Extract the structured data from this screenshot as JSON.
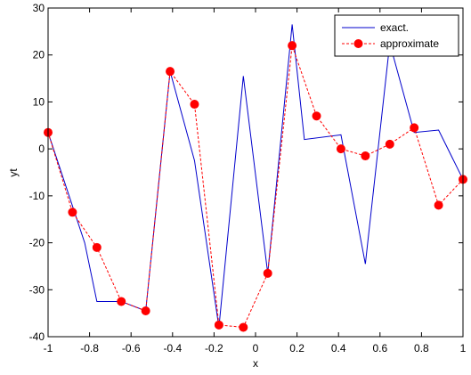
{
  "chart_data": {
    "type": "line",
    "xlabel": "x",
    "ylabel": "yt",
    "xlim": [
      -1,
      1
    ],
    "ylim": [
      -40,
      30
    ],
    "xticks": [
      -1,
      -0.8,
      -0.6,
      -0.4,
      -0.2,
      0,
      0.2,
      0.4,
      0.6,
      0.8,
      1
    ],
    "xtick_labels": [
      "-1",
      "-0.8",
      "-0.6",
      "-0.4",
      "-0.2",
      "0",
      "0.2",
      "0.4",
      "0.6",
      "0.8",
      "1"
    ],
    "yticks": [
      -40,
      -30,
      -20,
      -10,
      0,
      10,
      20,
      30
    ],
    "ytick_labels": [
      "-40",
      "-30",
      "-20",
      "-10",
      "0",
      "10",
      "20",
      "30"
    ],
    "grid": false,
    "legend_position": "top-right",
    "series": [
      {
        "name": "exact.",
        "color": "#0000cc",
        "line_style": "solid",
        "marker": "none",
        "x": [
          -1,
          -0.8235,
          -0.7647,
          -0.6471,
          -0.5294,
          -0.4118,
          -0.2941,
          -0.1765,
          -0.0588,
          0.0588,
          0.1765,
          0.2353,
          0.4118,
          0.5294,
          0.6471,
          0.7647,
          0.8824,
          1
        ],
        "y": [
          3.5,
          -20,
          -32.5,
          -32.5,
          -34.5,
          16.5,
          -2.5,
          -38,
          15.5,
          -26.5,
          26.5,
          2,
          3,
          -24.5,
          22.5,
          3.5,
          4,
          -6.5
        ]
      },
      {
        "name": "approximate",
        "color": "#ff0000",
        "line_style": "dashed",
        "marker": "circle",
        "x": [
          -1,
          -0.8824,
          -0.7647,
          -0.6471,
          -0.5294,
          -0.4118,
          -0.2941,
          -0.1765,
          -0.0588,
          0.0588,
          0.1765,
          0.2941,
          0.4118,
          0.5294,
          0.6471,
          0.7647,
          0.8824,
          1
        ],
        "y": [
          3.5,
          -13.5,
          -21,
          -32.5,
          -34.5,
          16.5,
          9.5,
          -37.5,
          -38,
          -26.5,
          22,
          7,
          0,
          -1.5,
          1,
          4.5,
          -12,
          -6.5
        ]
      }
    ]
  }
}
